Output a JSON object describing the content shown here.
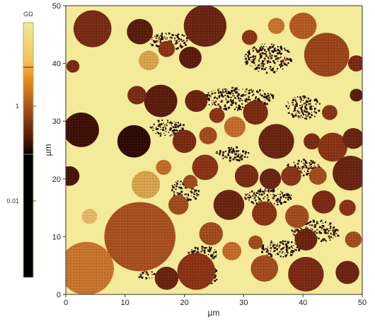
{
  "chart_data": {
    "type": "heatmap",
    "title": "",
    "xlabel": "µm",
    "ylabel": "µm",
    "xlim": [
      0,
      50
    ],
    "ylim": [
      0,
      50
    ],
    "x_ticks": [
      "0",
      "10",
      "20",
      "30",
      "40",
      "50"
    ],
    "y_ticks": [
      "0",
      "10",
      "20",
      "30",
      "40",
      "50"
    ],
    "colorbar": {
      "unit": "GΩ",
      "tick_labels": [
        "1",
        "0.01"
      ],
      "scale": "log",
      "colors": [
        "#f6e796",
        "#ec8d1e",
        "#a5511a",
        "#2a0a04",
        "#000000"
      ],
      "marker_color": "#e8490e"
    },
    "background_color": "#f3eb9a",
    "particles": [
      {
        "x": 4.5,
        "y": 46.0,
        "r": 3.2,
        "color": "#7a2a12"
      },
      {
        "x": 12.5,
        "y": 45.5,
        "r": 2.2,
        "color": "#5a1c0c"
      },
      {
        "x": 23.5,
        "y": 46.5,
        "r": 3.6,
        "color": "#6a2410"
      },
      {
        "x": 17.0,
        "y": 42.5,
        "r": 1.4,
        "color": "#8a3314"
      },
      {
        "x": 21.0,
        "y": 41.0,
        "r": 1.9,
        "color": "#5a1c0c"
      },
      {
        "x": 14.0,
        "y": 40.5,
        "r": 1.7,
        "color": "#d9a34c"
      },
      {
        "x": 35.5,
        "y": 46.5,
        "r": 1.4,
        "color": "#c8742e"
      },
      {
        "x": 40.0,
        "y": 46.5,
        "r": 2.3,
        "color": "#b45a20"
      },
      {
        "x": 31.0,
        "y": 44.5,
        "r": 1.3,
        "color": "#8a3314"
      },
      {
        "x": 44.0,
        "y": 41.5,
        "r": 3.8,
        "color": "#9b4419"
      },
      {
        "x": 49.0,
        "y": 40.0,
        "r": 1.4,
        "color": "#7a2a12"
      },
      {
        "x": 1.2,
        "y": 39.5,
        "r": 1.1,
        "color": "#7a2a12"
      },
      {
        "x": 16.0,
        "y": 33.5,
        "r": 2.8,
        "color": "#5a1c0c"
      },
      {
        "x": 12.0,
        "y": 34.5,
        "r": 1.6,
        "color": "#7a2a12"
      },
      {
        "x": 22.0,
        "y": 33.5,
        "r": 1.9,
        "color": "#6a2410"
      },
      {
        "x": 25.5,
        "y": 31.0,
        "r": 1.3,
        "color": "#8a3314"
      },
      {
        "x": 32.0,
        "y": 31.5,
        "r": 2.1,
        "color": "#7a2a12"
      },
      {
        "x": 2.6,
        "y": 28.5,
        "r": 3.0,
        "color": "#3f1006"
      },
      {
        "x": 11.5,
        "y": 26.5,
        "r": 2.8,
        "color": "#2d0905"
      },
      {
        "x": 20.0,
        "y": 26.5,
        "r": 2.0,
        "color": "#7a2a12"
      },
      {
        "x": 24.0,
        "y": 27.5,
        "r": 1.5,
        "color": "#a24c1c"
      },
      {
        "x": 28.5,
        "y": 29.0,
        "r": 1.8,
        "color": "#c46c2a"
      },
      {
        "x": 35.5,
        "y": 26.5,
        "r": 3.0,
        "color": "#6a2410"
      },
      {
        "x": 41.5,
        "y": 26.5,
        "r": 1.4,
        "color": "#7a2a12"
      },
      {
        "x": 45.0,
        "y": 25.5,
        "r": 2.5,
        "color": "#8a3314"
      },
      {
        "x": 48.5,
        "y": 27.0,
        "r": 1.8,
        "color": "#6a2410"
      },
      {
        "x": 44.5,
        "y": 31.5,
        "r": 1.3,
        "color": "#8a3314"
      },
      {
        "x": 49.0,
        "y": 34.5,
        "r": 1.1,
        "color": "#5a1c0c"
      },
      {
        "x": 23.5,
        "y": 22.0,
        "r": 2.2,
        "color": "#8a3314"
      },
      {
        "x": 16.5,
        "y": 22.0,
        "r": 1.3,
        "color": "#c46c2a"
      },
      {
        "x": 21.0,
        "y": 19.5,
        "r": 1.2,
        "color": "#a24c1c"
      },
      {
        "x": 30.5,
        "y": 20.5,
        "r": 2.0,
        "color": "#7a2a12"
      },
      {
        "x": 34.5,
        "y": 20.0,
        "r": 1.8,
        "color": "#6a2410"
      },
      {
        "x": 38.0,
        "y": 20.5,
        "r": 1.7,
        "color": "#8a3314"
      },
      {
        "x": 42.5,
        "y": 20.5,
        "r": 1.5,
        "color": "#a24c1c"
      },
      {
        "x": 48.0,
        "y": 21.0,
        "r": 3.0,
        "color": "#6a2410"
      },
      {
        "x": 0.6,
        "y": 20.5,
        "r": 1.7,
        "color": "#4a1408"
      },
      {
        "x": 13.5,
        "y": 19.0,
        "r": 2.4,
        "color": "#d9a34c"
      },
      {
        "x": 19.0,
        "y": 15.5,
        "r": 1.7,
        "color": "#a24c1c"
      },
      {
        "x": 27.5,
        "y": 15.5,
        "r": 2.6,
        "color": "#6a2410"
      },
      {
        "x": 33.5,
        "y": 14.0,
        "r": 2.1,
        "color": "#8a3314"
      },
      {
        "x": 39.0,
        "y": 13.5,
        "r": 2.0,
        "color": "#a24c1c"
      },
      {
        "x": 43.5,
        "y": 16.0,
        "r": 2.0,
        "color": "#7a2a12"
      },
      {
        "x": 47.5,
        "y": 15.0,
        "r": 1.4,
        "color": "#8a3314"
      },
      {
        "x": 4.0,
        "y": 13.5,
        "r": 1.3,
        "color": "#e4b868"
      },
      {
        "x": 12.5,
        "y": 10.0,
        "r": 6.0,
        "color": "#a84f1e"
      },
      {
        "x": 24.5,
        "y": 10.5,
        "r": 2.0,
        "color": "#a24c1c"
      },
      {
        "x": 28.0,
        "y": 7.5,
        "r": 1.6,
        "color": "#c46c2a"
      },
      {
        "x": 32.0,
        "y": 9.0,
        "r": 1.2,
        "color": "#a24c1c"
      },
      {
        "x": 40.5,
        "y": 9.5,
        "r": 1.9,
        "color": "#6a2410"
      },
      {
        "x": 48.5,
        "y": 9.5,
        "r": 1.4,
        "color": "#a24c1c"
      },
      {
        "x": 3.5,
        "y": 4.5,
        "r": 4.6,
        "color": "#c8742e"
      },
      {
        "x": 22.0,
        "y": 4.0,
        "r": 3.2,
        "color": "#8a3314"
      },
      {
        "x": 17.0,
        "y": 2.8,
        "r": 2.0,
        "color": "#6a2410"
      },
      {
        "x": 33.5,
        "y": 4.5,
        "r": 2.3,
        "color": "#a24c1c"
      },
      {
        "x": 40.5,
        "y": 3.5,
        "r": 3.0,
        "color": "#7a2a12"
      },
      {
        "x": 47.5,
        "y": 3.8,
        "r": 2.0,
        "color": "#6a2410"
      }
    ],
    "clusters": [
      {
        "x": 17.5,
        "y": 44.0,
        "rx": 3.5,
        "ry": 1.5
      },
      {
        "x": 34.0,
        "y": 41.0,
        "rx": 4.0,
        "ry": 2.5
      },
      {
        "x": 29.0,
        "y": 34.0,
        "rx": 6.0,
        "ry": 2.0
      },
      {
        "x": 40.0,
        "y": 32.5,
        "rx": 3.0,
        "ry": 2.0
      },
      {
        "x": 17.0,
        "y": 29.0,
        "rx": 3.0,
        "ry": 1.5
      },
      {
        "x": 28.0,
        "y": 24.5,
        "rx": 3.0,
        "ry": 1.2
      },
      {
        "x": 20.0,
        "y": 18.0,
        "rx": 2.5,
        "ry": 2.0
      },
      {
        "x": 34.0,
        "y": 17.0,
        "rx": 4.0,
        "ry": 1.5
      },
      {
        "x": 40.0,
        "y": 22.0,
        "rx": 3.0,
        "ry": 1.5
      },
      {
        "x": 42.0,
        "y": 11.0,
        "rx": 4.0,
        "ry": 2.0
      },
      {
        "x": 36.0,
        "y": 8.0,
        "rx": 3.5,
        "ry": 1.5
      },
      {
        "x": 23.0,
        "y": 7.0,
        "rx": 2.5,
        "ry": 1.5
      },
      {
        "x": 24.5,
        "y": 3.5,
        "rx": 1.2,
        "ry": 1.5
      },
      {
        "x": 13.5,
        "y": 3.5,
        "rx": 1.5,
        "ry": 0.8
      }
    ]
  }
}
